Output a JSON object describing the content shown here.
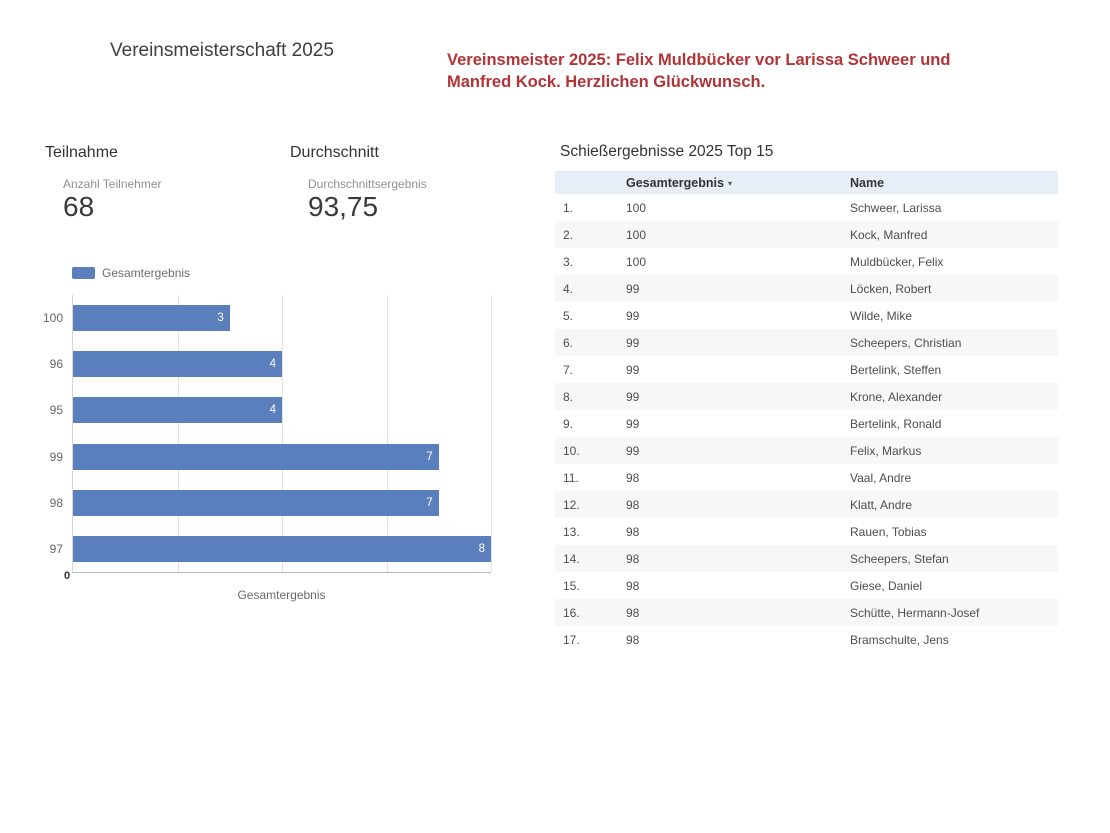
{
  "page": {
    "title": "Vereinsmeisterschaft 2025",
    "announcement": "Vereinsmeister 2025: Felix Muldbücker vor Larissa Schweer und Manfred Kock. Herzlichen Glückwunsch."
  },
  "cards": [
    {
      "title": "Teilnahme",
      "label": "Anzahl Teilnehmer",
      "value": "68"
    },
    {
      "title": "Durchschnitt",
      "label": "Durchschnittsergebnis",
      "value": "93,75"
    }
  ],
  "colors": {
    "bar": "#5b7ebd",
    "announcement": "#b13437",
    "table_header_bg": "#e8eef8",
    "row_alt_bg": "#f7f7f7"
  },
  "chart_data": [
    {
      "type": "bar",
      "orientation": "horizontal",
      "legend": [
        "Gesamtergebnis"
      ],
      "categories": [
        "100",
        "96",
        "95",
        "99",
        "98",
        "97"
      ],
      "values": [
        3,
        4,
        4,
        7,
        7,
        8
      ],
      "xlabel": "Gesamtergebnis",
      "xlim": [
        0,
        8
      ],
      "x_tick_labels_shown": [
        "0"
      ],
      "grid": true,
      "gridline_values": [
        2,
        4,
        6,
        8
      ],
      "legend_position": "top-left"
    },
    {
      "type": "table",
      "title": "Schießergebnisse 2025 Top 15",
      "columns": [
        "",
        "Gesamtergebnis",
        "Name"
      ],
      "sort": {
        "column": "Gesamtergebnis",
        "direction": "desc",
        "indicator": "▾"
      },
      "rows": [
        [
          "1.",
          "100",
          "Schweer, Larissa"
        ],
        [
          "2.",
          "100",
          "Kock, Manfred"
        ],
        [
          "3.",
          "100",
          "Muldbücker, Felix"
        ],
        [
          "4.",
          "99",
          "Löcken, Robert"
        ],
        [
          "5.",
          "99",
          "Wilde, Mike"
        ],
        [
          "6.",
          "99",
          "Scheepers, Christian"
        ],
        [
          "7.",
          "99",
          "Bertelink, Steffen"
        ],
        [
          "8.",
          "99",
          "Krone, Alexander"
        ],
        [
          "9.",
          "99",
          "Bertelink, Ronald"
        ],
        [
          "10.",
          "99",
          "Felix, Markus"
        ],
        [
          "11.",
          "98",
          "Vaal, Andre"
        ],
        [
          "12.",
          "98",
          "Klatt, Andre"
        ],
        [
          "13.",
          "98",
          "Rauen, Tobias"
        ],
        [
          "14.",
          "98",
          "Scheepers, Stefan"
        ],
        [
          "15.",
          "98",
          "Giese, Daniel"
        ],
        [
          "16.",
          "98",
          "Schütte, Hermann-Josef"
        ],
        [
          "17.",
          "98",
          "Bramschulte, Jens"
        ]
      ]
    }
  ]
}
